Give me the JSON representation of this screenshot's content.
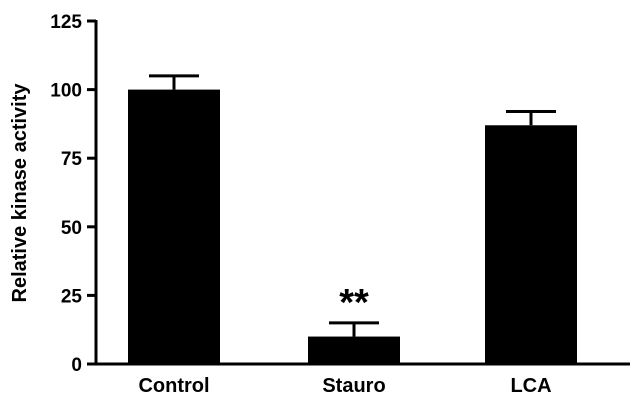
{
  "chart_data": {
    "type": "bar",
    "categories": [
      "Control",
      "Stauro",
      "LCA"
    ],
    "values": [
      100,
      10,
      87
    ],
    "error_upper": [
      105,
      15,
      92
    ],
    "ylabel": "Relative kinase activity",
    "xlabel": "",
    "ylim": [
      0,
      125
    ],
    "yticks": [
      0,
      25,
      50,
      75,
      100,
      125
    ],
    "annotations": [
      {
        "category": "Stauro",
        "text": "**"
      }
    ],
    "grid": false,
    "bar_color": "#000000"
  }
}
